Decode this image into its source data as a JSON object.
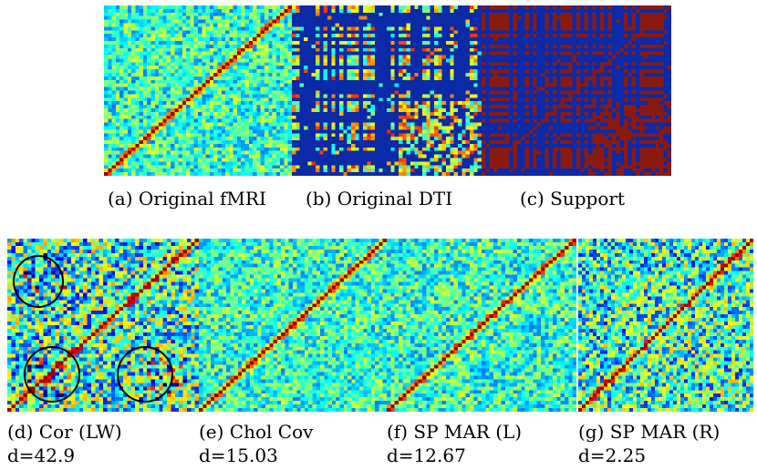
{
  "figure": {
    "top_row": [
      {
        "id": "a",
        "caption": "(a) Original fMRI",
        "style": "fmri",
        "seed": 11
      },
      {
        "id": "b",
        "caption": "(b) Original DTI",
        "style": "dti",
        "seed": 23
      },
      {
        "id": "c",
        "caption": "(c) Support",
        "style": "support",
        "seed": 37
      }
    ],
    "bottom_row": [
      {
        "id": "d",
        "caption": "(d) Cor (LW)",
        "metric": "d=42.9",
        "style": "cor",
        "seed": 41
      },
      {
        "id": "e",
        "caption": "(e) Chol Cov",
        "metric": "d=15.03",
        "style": "smooth",
        "seed": 53
      },
      {
        "id": "f",
        "caption": "(f) SP MAR (L)",
        "metric": "d=12.67",
        "style": "smooth",
        "seed": 67
      },
      {
        "id": "g",
        "caption": "(g) SP MAR (R)",
        "metric": "d=2.25",
        "style": "mar_r",
        "seed": 79
      }
    ],
    "colormap": "jet",
    "colors": {
      "background": "#ffffff",
      "dti_base": "#0a2aa8",
      "support_fill": "#8b1a0e"
    }
  }
}
